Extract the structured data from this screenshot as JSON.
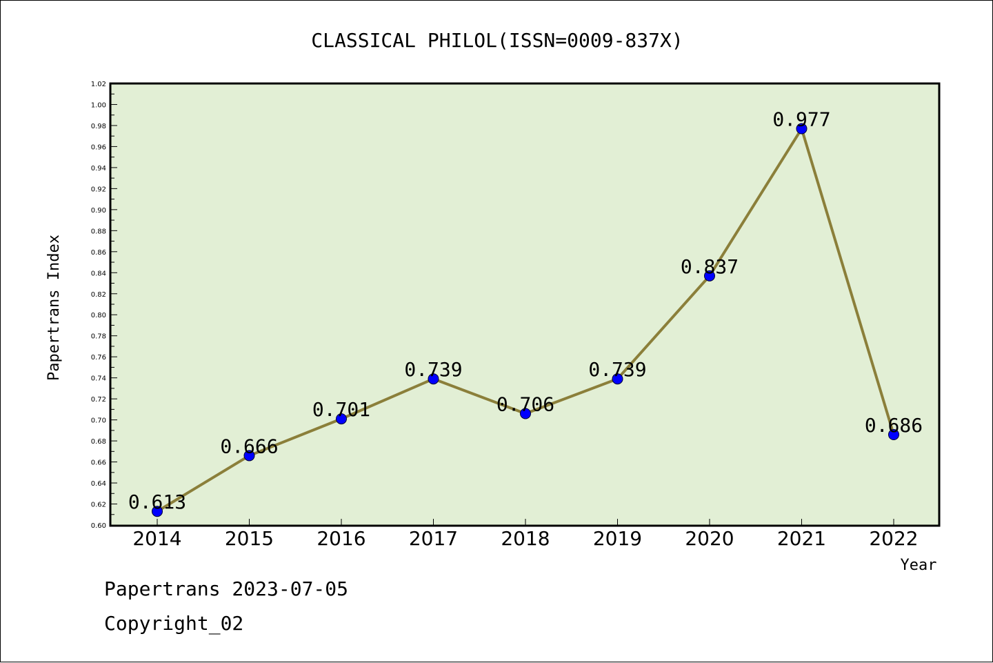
{
  "chart_data": {
    "type": "line",
    "title": "CLASSICAL PHILOL(ISSN=0009-837X)",
    "xlabel": "Year",
    "ylabel": "Papertrans Index",
    "categories": [
      "2014",
      "2015",
      "2016",
      "2017",
      "2018",
      "2019",
      "2020",
      "2021",
      "2022"
    ],
    "values": [
      0.613,
      0.666,
      0.701,
      0.739,
      0.706,
      0.739,
      0.837,
      0.977,
      0.686
    ],
    "labels": [
      "0.613",
      "0.666",
      "0.701",
      "0.739",
      "0.706",
      "0.739",
      "0.837",
      "0.977",
      "0.686"
    ],
    "ylim": [
      0.6,
      1.02
    ],
    "yticks": [
      "0.60",
      "0.62",
      "0.64",
      "0.66",
      "0.68",
      "0.70",
      "0.72",
      "0.74",
      "0.76",
      "0.78",
      "0.80",
      "0.82",
      "0.84",
      "0.86",
      "0.88",
      "0.90",
      "0.92",
      "0.94",
      "0.96",
      "0.98",
      "1.00",
      "1.02"
    ],
    "grid": false,
    "colors": {
      "plot_bg": "#e2efd5",
      "line": "#8b7f3a",
      "marker": "#0000ff"
    }
  },
  "footer": {
    "line1": "Papertrans 2023-07-05",
    "line2": "Copyright_02"
  }
}
